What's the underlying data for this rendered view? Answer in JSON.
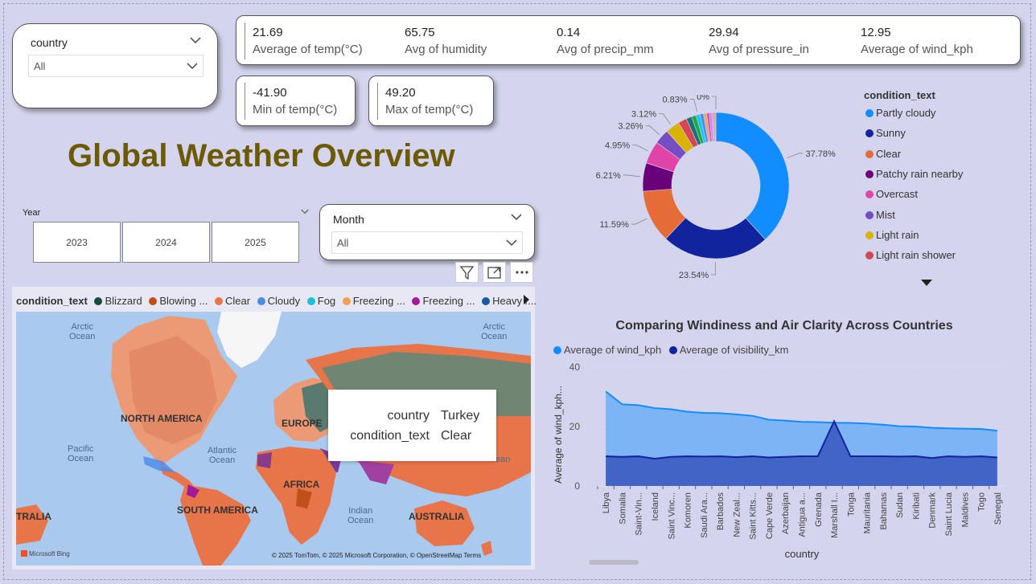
{
  "report": {
    "title": "Global Weather Overview"
  },
  "country_slicer": {
    "title": "country",
    "value": "All"
  },
  "month_slicer": {
    "title": "Month",
    "value": "All"
  },
  "year_slicer": {
    "title": "Year",
    "options": [
      "2023",
      "2024",
      "2025"
    ]
  },
  "kpis": [
    {
      "value": "21.69",
      "label": "Average of temp(°C)"
    },
    {
      "value": "65.75",
      "label": "Avg of humidity"
    },
    {
      "value": "0.14",
      "label": "Avg of precip_mm"
    },
    {
      "value": "29.94",
      "label": "Avg of pressure_in"
    },
    {
      "value": "12.95",
      "label": "Average of wind_kph"
    }
  ],
  "kpi_min": {
    "value": "-41.90",
    "label": "Min of temp(°C)"
  },
  "kpi_max": {
    "value": "49.20",
    "label": "Max of temp(°C)"
  },
  "map": {
    "legend_title": "condition_text",
    "legend": [
      {
        "label": "Blizzard",
        "color": "#1a4a3a"
      },
      {
        "label": "Blowing ...",
        "color": "#c0501a"
      },
      {
        "label": "Clear",
        "color": "#e8744a"
      },
      {
        "label": "Cloudy",
        "color": "#4a8ae8"
      },
      {
        "label": "Fog",
        "color": "#1ac0e0"
      },
      {
        "label": "Freezing ...",
        "color": "#f0a050"
      },
      {
        "label": "Freezing ...",
        "color": "#a01a9a"
      },
      {
        "label": "Heavy r...",
        "color": "#1a5aa0"
      }
    ],
    "oceans": [
      {
        "text": "Arctic\nOcean"
      },
      {
        "text": "Arctic\nOcean"
      },
      {
        "text": "Pacific\nOcean"
      },
      {
        "text": "Atlantic\nOcean"
      },
      {
        "text": "Indian\nOcean"
      },
      {
        "text": "ean"
      }
    ],
    "continents": [
      "NORTH AMERICA",
      "EUROPE",
      "AFRICA",
      "SOUTH AMERICA",
      "AUSTRALIA",
      "TRALIA"
    ],
    "attribution": "© 2025 TomTom, © 2025 Microsoft Corporation, © OpenStreetMap  Terms",
    "bing": "Microsoft Bing",
    "tooltip": {
      "k1": "country",
      "v1": "Turkey",
      "k2": "condition_text",
      "v2": "Clear"
    }
  },
  "pie_legend": {
    "title": "condition_text",
    "items": [
      {
        "label": "Partly cloudy",
        "color": "#118dff"
      },
      {
        "label": "Sunny",
        "color": "#12239e"
      },
      {
        "label": "Clear",
        "color": "#e66c37"
      },
      {
        "label": "Patchy rain nearby",
        "color": "#6b007b"
      },
      {
        "label": "Overcast",
        "color": "#e044a7"
      },
      {
        "label": "Mist",
        "color": "#744ec2"
      },
      {
        "label": "Light rain",
        "color": "#d9b300"
      },
      {
        "label": "Light rain shower",
        "color": "#d64550"
      }
    ]
  },
  "chart_data": [
    {
      "type": "pie",
      "title": "",
      "series_title": "condition_text",
      "slices": [
        {
          "label": "Partly cloudy",
          "value": 37.78,
          "color": "#118dff"
        },
        {
          "label": "Sunny",
          "value": 23.54,
          "color": "#12239e"
        },
        {
          "label": "Clear",
          "value": 11.59,
          "color": "#e66c37"
        },
        {
          "label": "Patchy rain nearby",
          "value": 6.21,
          "color": "#6b007b"
        },
        {
          "label": "Overcast",
          "value": 4.95,
          "color": "#e044a7"
        },
        {
          "label": "Mist",
          "value": 3.26,
          "color": "#744ec2"
        },
        {
          "label": "Light rain",
          "value": 3.12,
          "color": "#d9b300"
        },
        {
          "label": "Light rain shower",
          "value": 1.9,
          "color": "#d64550"
        },
        {
          "label": "",
          "value": 1.2,
          "color": "#197278"
        },
        {
          "label": "",
          "value": 1.0,
          "color": "#1aab40"
        },
        {
          "label": "",
          "value": 0.83,
          "color": "#15c6f4"
        },
        {
          "label": "",
          "value": 0.8,
          "color": "#4092ff"
        },
        {
          "label": "",
          "value": 0.7,
          "color": "#ffa058"
        },
        {
          "label": "",
          "value": 0.6,
          "color": "#be5dc9"
        },
        {
          "label": "",
          "value": 0.5,
          "color": "#f472d0"
        },
        {
          "label": "",
          "value": 0.4,
          "color": "#b5a1ff"
        },
        {
          "label": "",
          "value": 0.3,
          "color": "#c4a200"
        },
        {
          "label": "",
          "value": 0.2,
          "color": "#ff8080"
        },
        {
          "label": "",
          "value": 0.0,
          "color": "#999999"
        }
      ],
      "data_labels": [
        "37.78%",
        "23.54%",
        "11.59%",
        "6.21%",
        "4.95%",
        "3.26%",
        "3.12%",
        "0.83%",
        "0%"
      ]
    },
    {
      "type": "area",
      "title": "Comparing Windiness and Air Clarity Across Countries",
      "xlabel": "country",
      "ylabel": "Average of wind_kph...",
      "ylim": [
        0,
        40
      ],
      "yticks": [
        0,
        20,
        40
      ],
      "categories": [
        "Libya",
        "Somalia",
        "Saint-Vin...",
        "Iceland",
        "Saint Vinc...",
        "Komoren",
        "Saudi Ara...",
        "Barbados",
        "New Zeal...",
        "Saint Kitts...",
        "Cape Verde",
        "Azerbaijan",
        "Antigua a...",
        "Grenada",
        "Marshall I...",
        "Tonga",
        "Mauritania",
        "Bahamas",
        "Sudan",
        "Kiribati",
        "Denmark",
        "Saint Lucia",
        "Maldives",
        "Togo",
        "Senegal"
      ],
      "series": [
        {
          "name": "Average of wind_kph",
          "color": "#118dff",
          "values": [
            31.8,
            27.5,
            27.2,
            26.2,
            25.8,
            25.0,
            24.6,
            24.5,
            24.1,
            23.6,
            22.3,
            22.0,
            21.6,
            21.5,
            21.3,
            21.2,
            21.0,
            20.6,
            20.1,
            20.0,
            19.6,
            19.4,
            19.3,
            19.2,
            18.6
          ]
        },
        {
          "name": "Average of visibility_km",
          "color": "#12239e",
          "values": [
            10.0,
            9.8,
            10.0,
            9.2,
            9.8,
            10.0,
            9.9,
            10.0,
            9.7,
            10.0,
            9.6,
            9.8,
            10.0,
            10.0,
            21.8,
            10.0,
            10.0,
            10.0,
            9.9,
            10.0,
            9.4,
            10.0,
            9.8,
            10.0,
            9.6
          ]
        }
      ]
    }
  ]
}
